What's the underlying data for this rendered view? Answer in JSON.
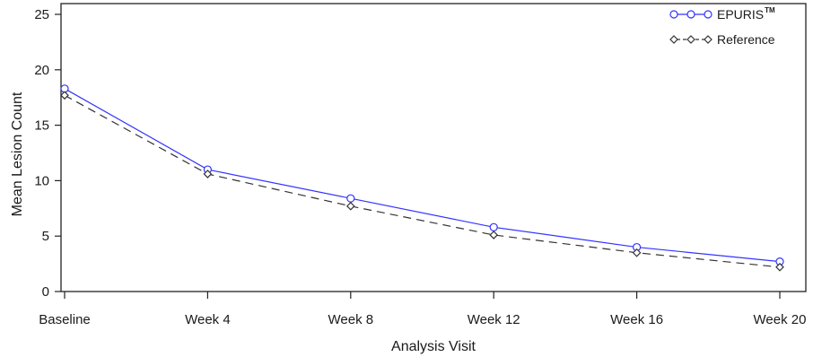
{
  "chart_data": {
    "type": "line",
    "categories": [
      "Baseline",
      "Week 4",
      "Week 8",
      "Week 12",
      "Week 16",
      "Week 20"
    ],
    "xlabel": "Analysis Visit",
    "ylabel": "Mean Lesion Count",
    "ylim": [
      0,
      25
    ],
    "yticks": [
      0,
      5,
      10,
      15,
      20,
      25
    ],
    "grid": false,
    "legend_position": "top-right",
    "series": [
      {
        "name": "EPURIS",
        "name_mark": "TM",
        "color": "#3333ff",
        "marker": "circle",
        "line_style": "solid",
        "values": [
          18.3,
          11.0,
          8.4,
          5.8,
          4.0,
          2.7
        ]
      },
      {
        "name": "Reference",
        "color": "#333333",
        "marker": "diamond",
        "line_style": "dashed",
        "values": [
          17.7,
          10.6,
          7.7,
          5.1,
          3.5,
          2.2
        ]
      }
    ]
  }
}
